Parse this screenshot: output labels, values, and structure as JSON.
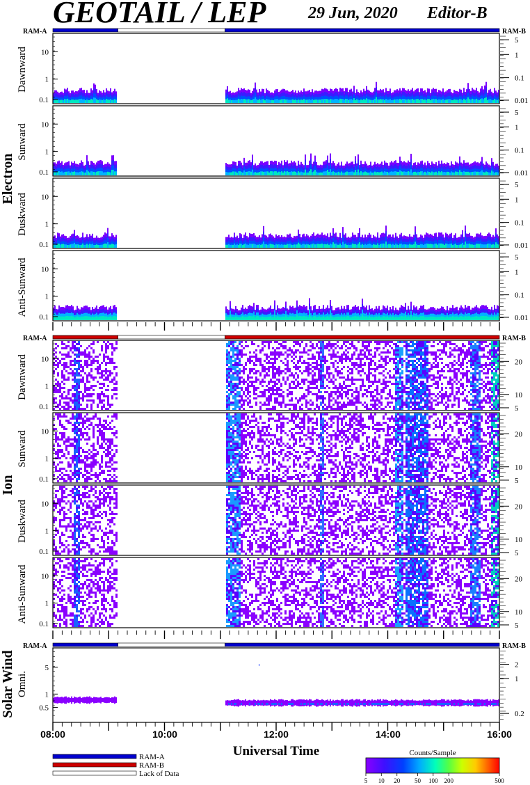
{
  "header": {
    "title": "GEOTAIL / LEP",
    "date": "29 Jun, 2020",
    "editor": "Editor-B"
  },
  "ram_labels": {
    "left": "RAM-A",
    "right": "RAM-B"
  },
  "groups": {
    "electron": "Electron",
    "ion": "Ion",
    "solar_wind": "Solar Wind"
  },
  "x_axis": {
    "title": "Universal Time",
    "ticks": [
      "08:00",
      "10:00",
      "12:00",
      "14:00",
      "16:00"
    ]
  },
  "legend": {
    "ram_a": "RAM-A",
    "ram_b": "RAM-B",
    "lack": "Lack of Data"
  },
  "colorbar": {
    "title": "Counts/Sample",
    "ticks": [
      "5",
      "10",
      "20",
      "50",
      "100",
      "200",
      "500"
    ]
  },
  "colors": {
    "ram_a": "#0000cc",
    "ram_b": "#cc0000",
    "lack_of_data": "#ffffff",
    "spectrum_low": "#8a00ff",
    "spectrum_mid": "#0066ff",
    "spectrum_high": "#00ffaa"
  },
  "chart_data": {
    "type": "heatmap",
    "time_range": [
      "08:00",
      "16:00"
    ],
    "data_gaps": [
      [
        "09:10",
        "11:05"
      ]
    ],
    "electron_ram_bar": [
      {
        "from": "08:00",
        "to": "09:10",
        "state": "RAM-A"
      },
      {
        "from": "09:10",
        "to": "11:05",
        "state": "Lack of Data"
      },
      {
        "from": "11:05",
        "to": "16:00",
        "state": "RAM-A"
      }
    ],
    "ion_ram_bar": [
      {
        "from": "08:00",
        "to": "09:10",
        "state": "RAM-B"
      },
      {
        "from": "09:10",
        "to": "11:05",
        "state": "Lack of Data"
      },
      {
        "from": "11:05",
        "to": "16:00",
        "state": "RAM-B"
      }
    ],
    "solar_wind_ram_bar": [
      {
        "from": "08:00",
        "to": "09:10",
        "state": "RAM-A"
      },
      {
        "from": "09:10",
        "to": "11:05",
        "state": "Lack of Data"
      },
      {
        "from": "11:05",
        "to": "16:00",
        "state": "RAM-A"
      }
    ],
    "electron_panels": [
      {
        "name": "Dawnward",
        "left_ticks": [
          "10",
          "1",
          "0.1"
        ],
        "right_ticks": [
          "5",
          "1",
          "0.1",
          "0.01"
        ]
      },
      {
        "name": "Sunward",
        "left_ticks": [
          "10",
          "1",
          "0.1"
        ],
        "right_ticks": [
          "5",
          "1",
          "0.1",
          "0.01"
        ]
      },
      {
        "name": "Duskward",
        "left_ticks": [
          "10",
          "1",
          "0.1"
        ],
        "right_ticks": [
          "5",
          "1",
          "0.1",
          "0.01"
        ]
      },
      {
        "name": "Anti-Sunward",
        "left_ticks": [
          "10",
          "1",
          "0.1"
        ],
        "right_ticks": [
          "5",
          "1",
          "0.1",
          "0.01"
        ]
      }
    ],
    "ion_panels": [
      {
        "name": "Dawnward",
        "left_ticks": [
          "10",
          "1",
          "0.1"
        ],
        "right_ticks": [
          "20",
          "10",
          "5"
        ]
      },
      {
        "name": "Sunward",
        "left_ticks": [
          "10",
          "1",
          "0.1"
        ],
        "right_ticks": [
          "20",
          "10",
          "5"
        ]
      },
      {
        "name": "Duskward",
        "left_ticks": [
          "10",
          "1",
          "0.1"
        ],
        "right_ticks": [
          "20",
          "10",
          "5"
        ]
      },
      {
        "name": "Anti-Sunward",
        "left_ticks": [
          "10",
          "1",
          "0.1"
        ],
        "right_ticks": [
          "20",
          "10",
          "5"
        ]
      }
    ],
    "solar_wind_panel": {
      "name": "Omni.",
      "left_ticks": [
        "5",
        "1",
        "0.5"
      ],
      "right_ticks": [
        "2",
        "1",
        "0.2"
      ]
    }
  }
}
